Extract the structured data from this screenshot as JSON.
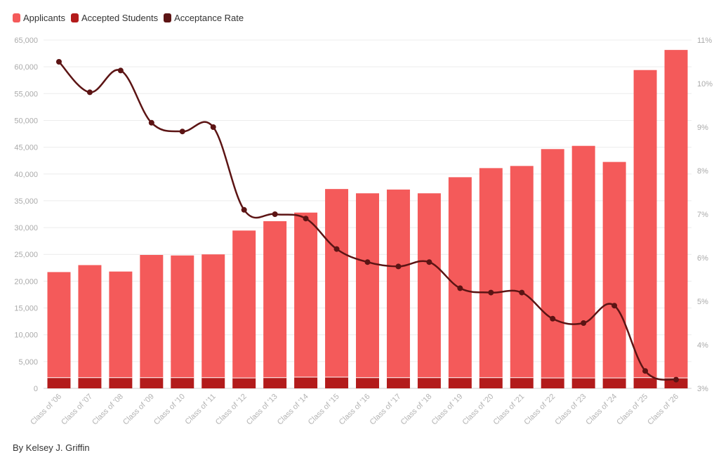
{
  "legend": [
    {
      "label": "Applicants",
      "color": "#f45a5a"
    },
    {
      "label": "Accepted Students",
      "color": "#b31b1b"
    },
    {
      "label": "Acceptance Rate",
      "color": "#5c1414"
    }
  ],
  "credit": "By Kelsey J. Griffin",
  "chart_data": {
    "type": "bar",
    "categories": [
      "Class of '06",
      "Class of '07",
      "Class of '08",
      "Class of '09",
      "Class of '10",
      "Class of '11",
      "Class of '12",
      "Class of '13",
      "Class of '14",
      "Class of '15",
      "Class of '16",
      "Class of '17",
      "Class of '18",
      "Class of '19",
      "Class of '20",
      "Class of '21",
      "Class of '22",
      "Class of '23",
      "Class of '24",
      "Class of '25",
      "Class of '26"
    ],
    "series": [
      {
        "name": "Applicants",
        "type": "bar",
        "stacked": true,
        "values": [
          19700,
          21000,
          19800,
          22900,
          22800,
          23000,
          27500,
          29200,
          30700,
          35100,
          34400,
          35100,
          34400,
          37400,
          39100,
          39500,
          42700,
          43300,
          40300,
          57400,
          61200
        ]
      },
      {
        "name": "Accepted Students",
        "type": "bar",
        "stacked": true,
        "values": [
          2000,
          2000,
          2000,
          2000,
          2000,
          2000,
          1950,
          2000,
          2100,
          2100,
          2000,
          2000,
          2000,
          2000,
          2000,
          2000,
          1950,
          1950,
          1950,
          2000,
          1950
        ]
      },
      {
        "name": "Acceptance Rate",
        "type": "line",
        "axis": "right",
        "values": [
          10.5,
          9.8,
          10.3,
          9.1,
          8.9,
          9.0,
          7.1,
          7.0,
          6.9,
          6.2,
          5.9,
          5.8,
          5.9,
          5.3,
          5.2,
          5.2,
          4.6,
          4.5,
          4.9,
          3.4,
          3.2
        ]
      }
    ],
    "left_axis": {
      "min": 0,
      "max": 65000,
      "step": 5000
    },
    "right_axis": {
      "min": 3,
      "max": 11,
      "step": 1,
      "suffix": "%"
    },
    "grid": true,
    "legend_position": "top-left"
  }
}
